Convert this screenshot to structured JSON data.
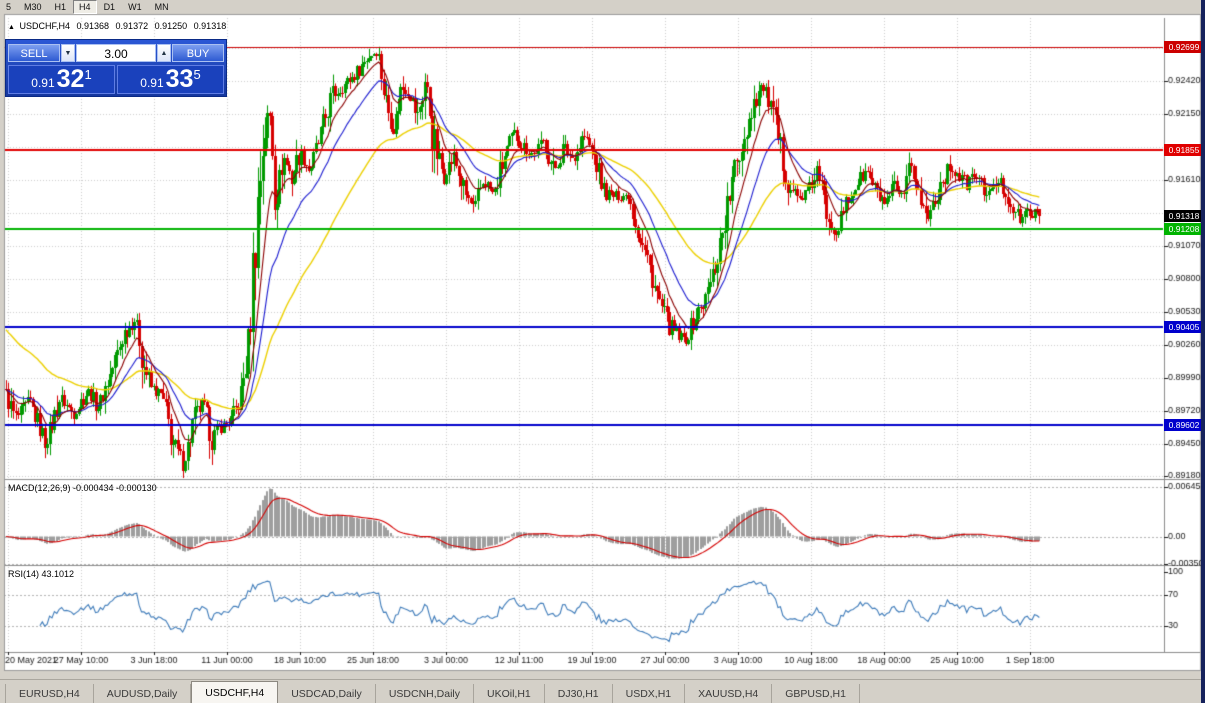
{
  "toolbar": {
    "timeframes": [
      "5",
      "M30",
      "H1",
      "H4",
      "D1",
      "W1",
      "MN"
    ],
    "active": "H4"
  },
  "chart_header": {
    "icon": "▲",
    "symbol_period": "USDCHF,H4",
    "open": "0.91368",
    "high": "0.91372",
    "low": "0.91250",
    "close": "0.91318"
  },
  "trade_panel": {
    "sell_label": "SELL",
    "buy_label": "BUY",
    "lot_size": "3.00",
    "spin_down": "▼",
    "spin_up": "▲",
    "sell_price": {
      "small": "0.91",
      "big": "32",
      "sup": "1"
    },
    "buy_price": {
      "small": "0.91",
      "big": "33",
      "sup": "5"
    }
  },
  "indicators": {
    "macd_label": "MACD(12,26,9) -0.000434 -0.000130",
    "rsi_label": "RSI(14) 43.1012"
  },
  "tabs": [
    {
      "label": "EURUSD,H4",
      "active": false
    },
    {
      "label": "AUDUSD,Daily",
      "active": false
    },
    {
      "label": "USDCHF,H4",
      "active": true
    },
    {
      "label": "USDCAD,Daily",
      "active": false
    },
    {
      "label": "USDCNH,Daily",
      "active": false
    },
    {
      "label": "UKOil,H1",
      "active": false
    },
    {
      "label": "DJ30,H1",
      "active": false
    },
    {
      "label": "USDX,H1",
      "active": false
    },
    {
      "label": "XAUUSD,H4",
      "active": false
    },
    {
      "label": "GBPUSD,H1",
      "active": false
    }
  ],
  "chart_data": {
    "type": "candlestick",
    "symbol": "USDCHF",
    "period": "H4",
    "last_ohlc": {
      "open": 0.91368,
      "high": 0.91372,
      "low": 0.9125,
      "close": 0.91318
    },
    "current_price": {
      "value": 0.91318,
      "label": "0.91318",
      "bg": "#000000",
      "fg": "#ffffff"
    },
    "candle_colors": {
      "up": "#009a00",
      "down": "#d60000"
    },
    "ma_lines": [
      {
        "name": "fast-ma",
        "period": 10,
        "color": "#8b0000"
      },
      {
        "name": "mid-ma",
        "period": 22,
        "color": "#1a1ad0"
      },
      {
        "name": "slow-ma",
        "period": 55,
        "color": "#ecd000",
        "seed": 0.904
      }
    ],
    "levels": [
      {
        "price": 0.92699,
        "label": "0.92699",
        "color": "#cc0000",
        "width": 1
      },
      {
        "price": 0.91855,
        "label": "0.91855",
        "color": "#e00000",
        "width": 2
      },
      {
        "price": 0.91208,
        "label": "0.91208",
        "color": "#00b300",
        "width": 2
      },
      {
        "price": 0.90405,
        "label": "0.90405",
        "color": "#0000cc",
        "width": 2
      },
      {
        "price": 0.89602,
        "label": "0.89602",
        "color": "#0000cc",
        "width": 2
      }
    ],
    "y_axis": {
      "ticks": [
        {
          "price": 0.9242,
          "label": "0.92420"
        },
        {
          "price": 0.9215,
          "label": "0.92150"
        },
        {
          "price": 0.9161,
          "label": "0.91610"
        },
        {
          "price": 0.9107,
          "label": "0.91070"
        },
        {
          "price": 0.908,
          "label": "0.90800"
        },
        {
          "price": 0.9053,
          "label": "0.90530"
        },
        {
          "price": 0.9026,
          "label": "0.90260"
        },
        {
          "price": 0.8999,
          "label": "0.89990"
        },
        {
          "price": 0.8972,
          "label": "0.89720"
        },
        {
          "price": 0.8945,
          "label": "0.89450"
        },
        {
          "price": 0.8918,
          "label": "0.89180"
        }
      ],
      "grid_prices": [
        0.8918,
        0.8945,
        0.8972,
        0.8999,
        0.9026,
        0.9053,
        0.908,
        0.9107,
        0.9134,
        0.9161,
        0.9188,
        0.9215,
        0.9242,
        0.9269
      ]
    },
    "macd": {
      "params": "12,26,9",
      "main_value": -0.000434,
      "signal_value": -0.00013,
      "axis": [
        {
          "value": 0.00645,
          "label": "0.00645"
        },
        {
          "value": 0,
          "label": "0.00"
        },
        {
          "value": -0.0035,
          "label": "-0.00350"
        }
      ],
      "histogram_color": "#9e9e9e",
      "signal_color": "#d40000"
    },
    "rsi": {
      "period": 14,
      "value": 43.1012,
      "axis": [
        {
          "value": 100,
          "label": "100"
        },
        {
          "value": 70,
          "label": "70"
        },
        {
          "value": 30,
          "label": "30"
        }
      ],
      "dashed_levels": [
        70,
        30
      ],
      "line_color": "#3f7cba"
    },
    "x_axis": {
      "labels": [
        "20 May 2021",
        "27 May 10:00",
        "3 Jun 18:00",
        "11 Jun 00:00",
        "18 Jun 10:00",
        "25 Jun 18:00",
        "3 Jul 00:00",
        "12 Jul 11:00",
        "19 Jul 19:00",
        "27 Jul 00:00",
        "3 Aug 10:00",
        "10 Aug 18:00",
        "18 Aug 00:00",
        "25 Aug 10:00",
        "1 Sep 18:00"
      ],
      "xs": [
        8,
        81,
        154,
        227,
        300,
        373,
        446,
        519,
        592,
        665,
        738,
        811,
        884,
        957,
        1030
      ]
    },
    "candle_count": 428,
    "price_anchors": [
      [
        5,
        0.8992
      ],
      [
        18,
        0.8965
      ],
      [
        32,
        0.898
      ],
      [
        48,
        0.8945
      ],
      [
        62,
        0.8982
      ],
      [
        76,
        0.897
      ],
      [
        90,
        0.8988
      ],
      [
        100,
        0.8975
      ],
      [
        112,
        0.9
      ],
      [
        126,
        0.9035
      ],
      [
        138,
        0.9048
      ],
      [
        146,
        0.901
      ],
      [
        154,
        0.899
      ],
      [
        164,
        0.8985
      ],
      [
        175,
        0.8945
      ],
      [
        186,
        0.8928
      ],
      [
        196,
        0.8965
      ],
      [
        206,
        0.8978
      ],
      [
        214,
        0.895
      ],
      [
        222,
        0.8958
      ],
      [
        232,
        0.8962
      ],
      [
        242,
        0.898
      ],
      [
        250,
        0.902
      ],
      [
        258,
        0.912
      ],
      [
        266,
        0.92
      ],
      [
        272,
        0.9215
      ],
      [
        278,
        0.915
      ],
      [
        286,
        0.918
      ],
      [
        294,
        0.9162
      ],
      [
        302,
        0.9185
      ],
      [
        312,
        0.9168
      ],
      [
        322,
        0.9195
      ],
      [
        334,
        0.923
      ],
      [
        346,
        0.9238
      ],
      [
        358,
        0.9248
      ],
      [
        370,
        0.9262
      ],
      [
        380,
        0.9268
      ],
      [
        388,
        0.9225
      ],
      [
        396,
        0.9205
      ],
      [
        404,
        0.9238
      ],
      [
        412,
        0.9232
      ],
      [
        420,
        0.9212
      ],
      [
        428,
        0.9245
      ],
      [
        436,
        0.919
      ],
      [
        446,
        0.9165
      ],
      [
        456,
        0.918
      ],
      [
        466,
        0.9152
      ],
      [
        476,
        0.9136
      ],
      [
        486,
        0.9162
      ],
      [
        496,
        0.9148
      ],
      [
        506,
        0.9178
      ],
      [
        516,
        0.9198
      ],
      [
        526,
        0.9188
      ],
      [
        536,
        0.9182
      ],
      [
        546,
        0.9192
      ],
      [
        556,
        0.9168
      ],
      [
        566,
        0.9188
      ],
      [
        576,
        0.9178
      ],
      [
        586,
        0.9198
      ],
      [
        596,
        0.9182
      ],
      [
        606,
        0.9152
      ],
      [
        616,
        0.9148
      ],
      [
        631,
        0.9148
      ],
      [
        641,
        0.9118
      ],
      [
        651,
        0.9092
      ],
      [
        661,
        0.9062
      ],
      [
        671,
        0.9042
      ],
      [
        681,
        0.9032
      ],
      [
        689,
        0.903
      ],
      [
        697,
        0.9048
      ],
      [
        707,
        0.9062
      ],
      [
        717,
        0.9088
      ],
      [
        727,
        0.9128
      ],
      [
        737,
        0.9168
      ],
      [
        747,
        0.9198
      ],
      [
        757,
        0.9228
      ],
      [
        765,
        0.9238
      ],
      [
        773,
        0.9222
      ],
      [
        781,
        0.919
      ],
      [
        791,
        0.9158
      ],
      [
        801,
        0.9145
      ],
      [
        811,
        0.9152
      ],
      [
        819,
        0.9168
      ],
      [
        829,
        0.9135
      ],
      [
        839,
        0.9118
      ],
      [
        849,
        0.9142
      ],
      [
        859,
        0.9158
      ],
      [
        869,
        0.9168
      ],
      [
        879,
        0.915
      ],
      [
        889,
        0.914
      ],
      [
        897,
        0.9155
      ],
      [
        905,
        0.9142
      ],
      [
        913,
        0.9172
      ],
      [
        921,
        0.915
      ],
      [
        929,
        0.9128
      ],
      [
        937,
        0.9146
      ],
      [
        945,
        0.9162
      ],
      [
        953,
        0.9172
      ],
      [
        961,
        0.9164
      ],
      [
        969,
        0.9158
      ],
      [
        977,
        0.9166
      ],
      [
        985,
        0.9154
      ],
      [
        993,
        0.915
      ],
      [
        1001,
        0.9162
      ],
      [
        1011,
        0.9146
      ],
      [
        1021,
        0.9128
      ],
      [
        1031,
        0.9135
      ],
      [
        1040,
        0.91318
      ]
    ]
  }
}
